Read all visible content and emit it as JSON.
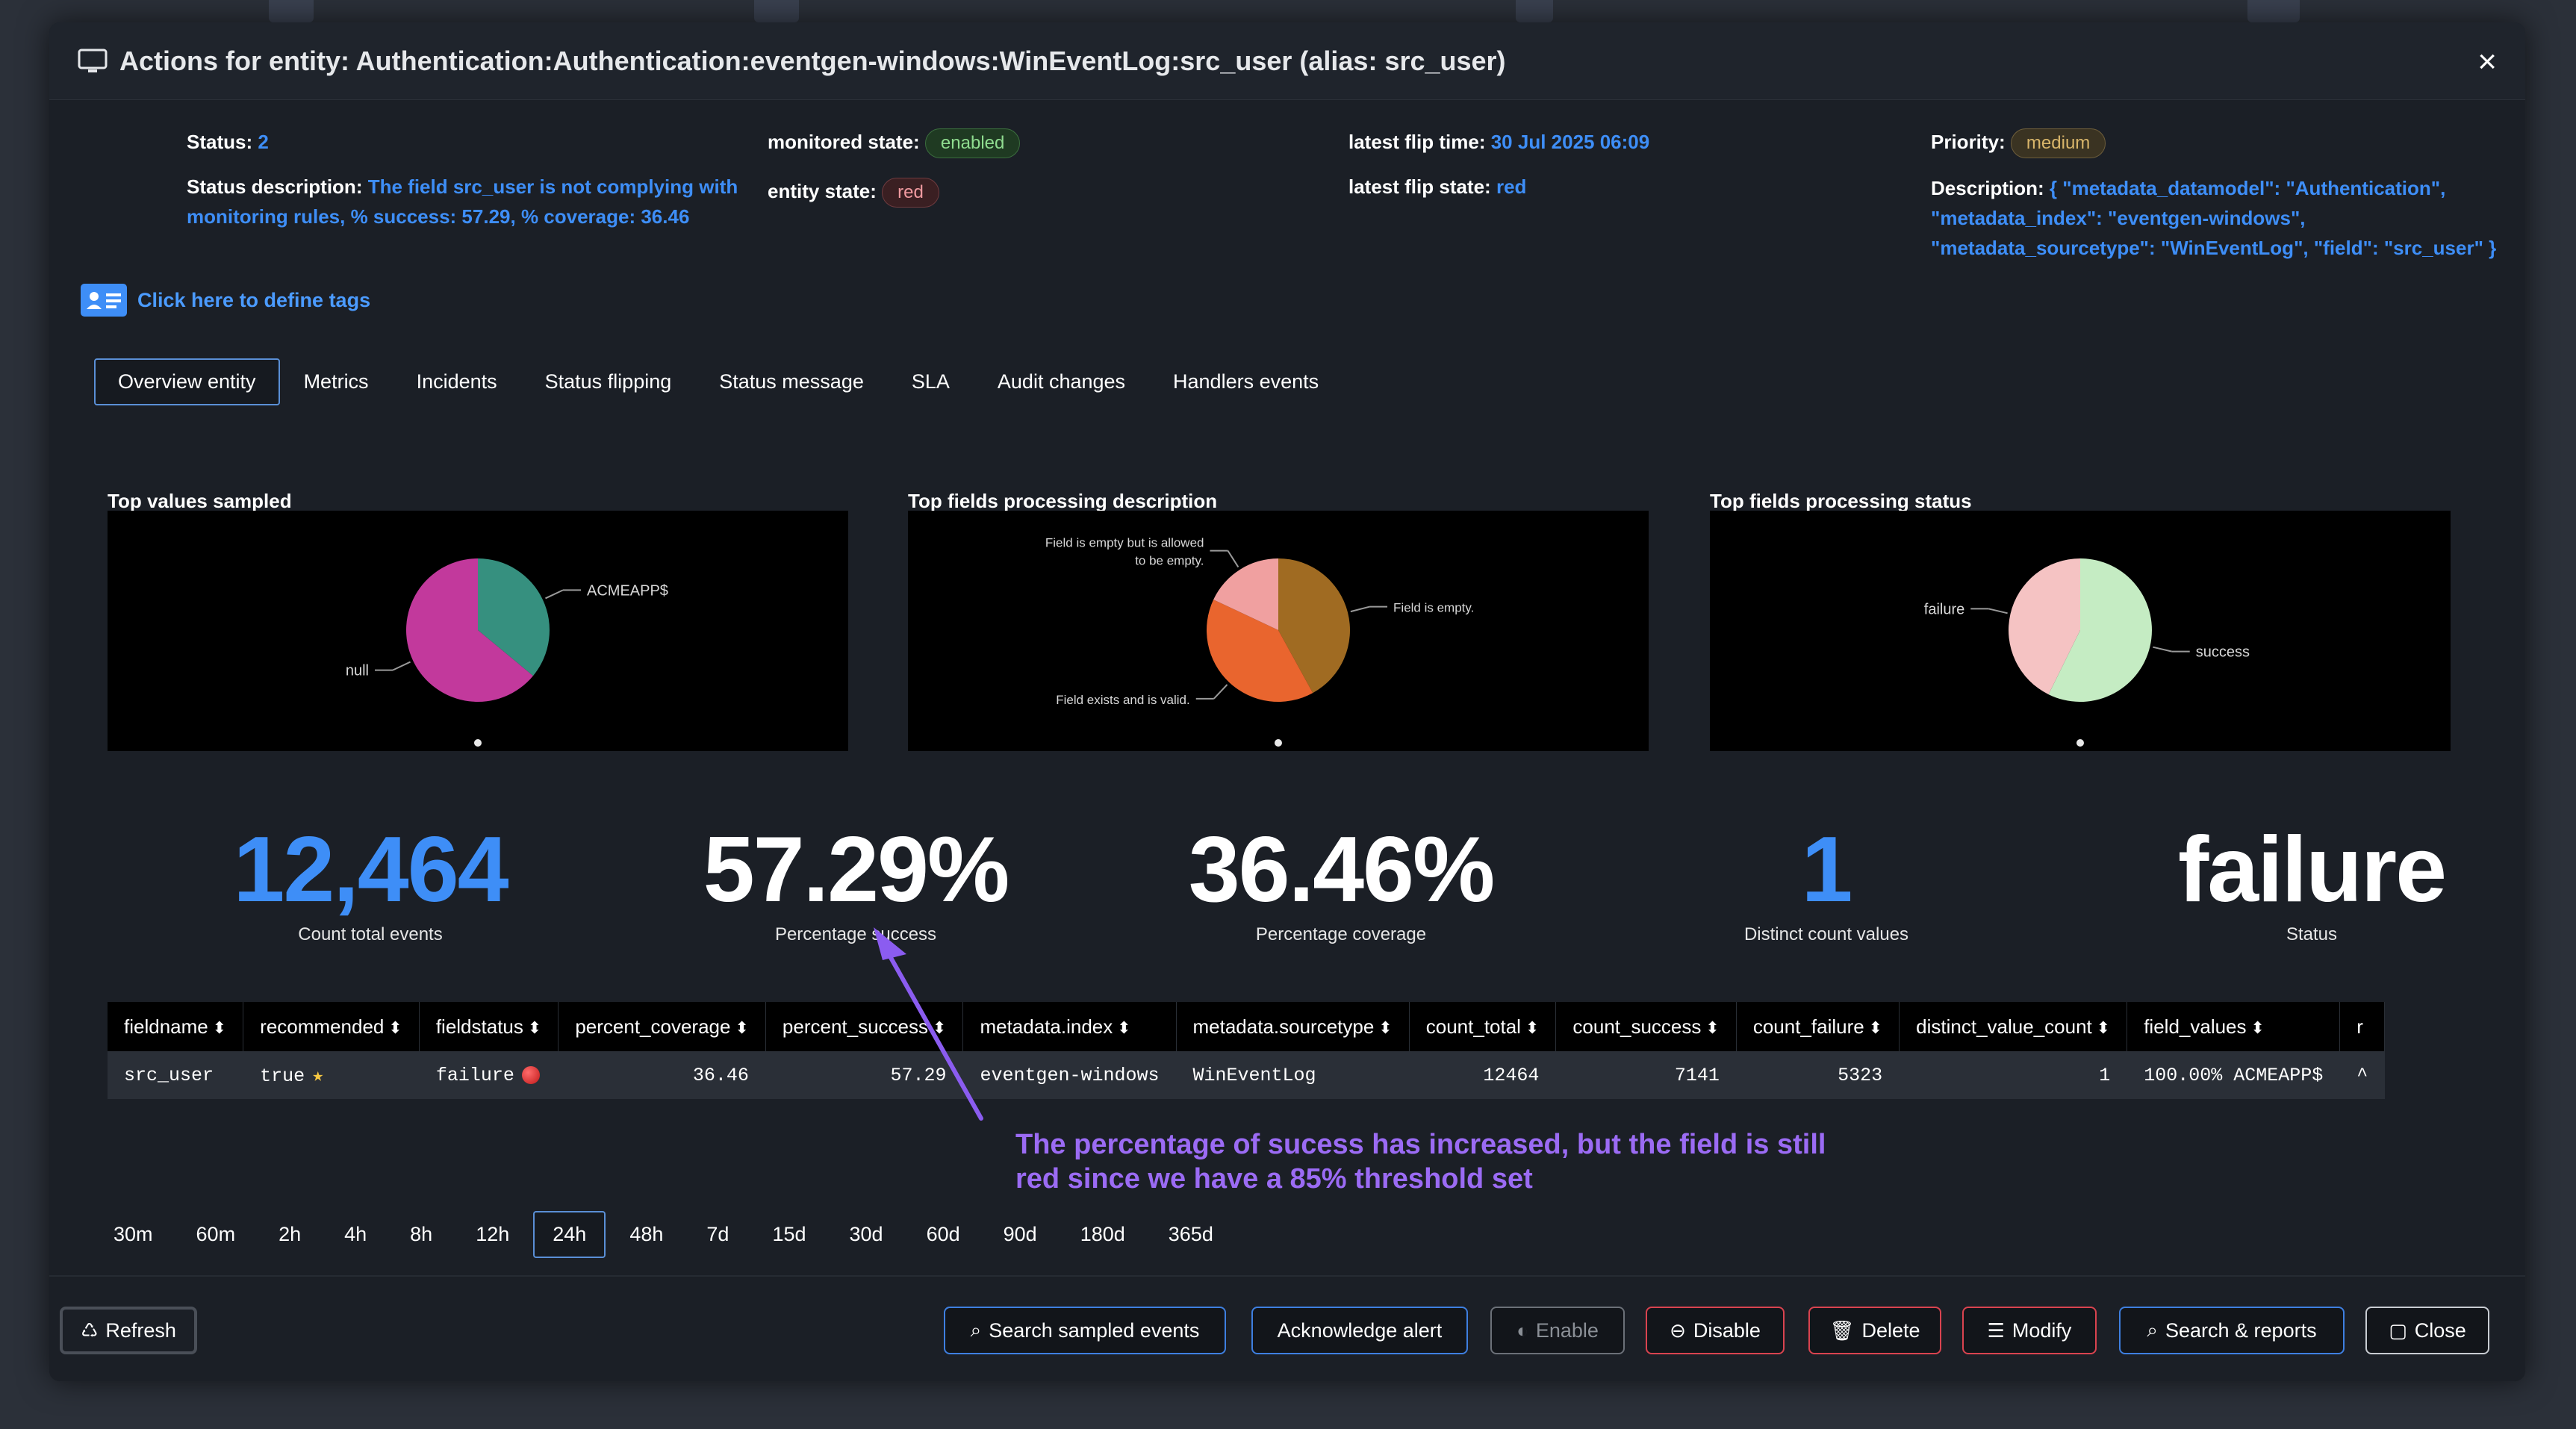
{
  "modal": {
    "title": "Actions for entity: Authentication:Authentication:eventgen-windows:WinEventLog:src_user (alias: src_user)",
    "close_label": "×"
  },
  "info": {
    "status_label": "Status:",
    "status_value": "2",
    "status_desc_label": "Status description:",
    "status_desc_line1": "The field src_user is not complying with",
    "status_desc_line2": "monitoring rules, % success: 57.29, % coverage: 36.46",
    "monitored_state_label": "monitored state:",
    "monitored_state_value": "enabled",
    "entity_state_label": "entity state:",
    "entity_state_value": "red",
    "latest_flip_time_label": "latest flip time:",
    "latest_flip_time_value": "30 Jul 2025 06:09",
    "latest_flip_state_label": "latest flip state:",
    "latest_flip_state_value": "red",
    "priority_label": "Priority:",
    "priority_value": "medium",
    "description_label": "Description:",
    "description_line1": "{ \"metadata_datamodel\": \"Authentication\",",
    "description_line2": "\"metadata_index\": \"eventgen-windows\",",
    "description_line3": "\"metadata_sourcetype\": \"WinEventLog\", \"field\": \"src_user\" }"
  },
  "tags_link": "Click here to define tags",
  "tabs": [
    "Overview entity",
    "Metrics",
    "Incidents",
    "Status flipping",
    "Status message",
    "SLA",
    "Audit changes",
    "Handlers events"
  ],
  "panels": {
    "p1_title": "Top values sampled",
    "p2_title": "Top fields processing description",
    "p3_title": "Top fields processing status"
  },
  "chart_data": [
    {
      "type": "pie",
      "title": "Top values sampled",
      "labels": [
        "ACMEAPP$",
        "null"
      ],
      "values": [
        36,
        64
      ],
      "colors": [
        "#36907f",
        "#c2399c"
      ]
    },
    {
      "type": "pie",
      "title": "Top fields processing description",
      "labels": [
        "Field is empty.",
        "Field exists and is valid.",
        "Field is empty but is allowed to be empty."
      ],
      "label_lines": [
        [
          "Field is empty."
        ],
        [
          "Field exists and is valid."
        ],
        [
          "Field is empty but is allowed",
          "to be empty."
        ]
      ],
      "values": [
        42,
        40,
        18
      ],
      "colors": [
        "#a06b22",
        "#e9652e",
        "#f0a0a0"
      ]
    },
    {
      "type": "pie",
      "title": "Top fields processing status",
      "labels": [
        "success",
        "failure"
      ],
      "values": [
        57.29,
        42.71
      ],
      "colors": [
        "#c5ecc3",
        "#f5c3c3"
      ]
    }
  ],
  "kpis": [
    {
      "value": "12,464",
      "label": "Count total events",
      "color": "#3e8ef7"
    },
    {
      "value": "57.29%",
      "label": "Percentage success",
      "color": "#ffffff"
    },
    {
      "value": "36.46%",
      "label": "Percentage coverage",
      "color": "#ffffff"
    },
    {
      "value": "1",
      "label": "Distinct count values",
      "color": "#3e8ef7"
    },
    {
      "value": "failure",
      "label": "Status",
      "color": "#ffffff"
    }
  ],
  "table": {
    "columns": [
      "fieldname",
      "recommended",
      "fieldstatus",
      "percent_coverage",
      "percent_success",
      "metadata.index",
      "metadata.sourcetype",
      "count_total",
      "count_success",
      "count_failure",
      "distinct_value_count",
      "field_values",
      "r"
    ],
    "row": {
      "fieldname": "src_user",
      "recommended": "true",
      "fieldstatus": "failure",
      "percent_coverage": "36.46",
      "percent_success": "57.29",
      "metadata_index": "eventgen-windows",
      "metadata_sourcetype": "WinEventLog",
      "count_total": "12464",
      "count_success": "7141",
      "count_failure": "5323",
      "distinct_value_count": "1",
      "field_values": "100.00% ACMEAPP$",
      "r": "^"
    }
  },
  "annotation": {
    "line1": "The percentage of sucess has increased, but the field is still",
    "line2": "red since we have a 85% threshold set",
    "color": "#9b6bf4"
  },
  "time_ranges": [
    "30m",
    "60m",
    "2h",
    "4h",
    "8h",
    "12h",
    "24h",
    "48h",
    "7d",
    "15d",
    "30d",
    "60d",
    "90d",
    "180d",
    "365d"
  ],
  "time_range_selected": "24h",
  "footer": {
    "refresh": "Refresh",
    "search_sampled": "Search sampled events",
    "acknowledge": "Acknowledge alert",
    "enable": "Enable",
    "disable": "Disable",
    "delete": "Delete",
    "modify": "Modify",
    "search_reports": "Search & reports",
    "close": "Close"
  }
}
